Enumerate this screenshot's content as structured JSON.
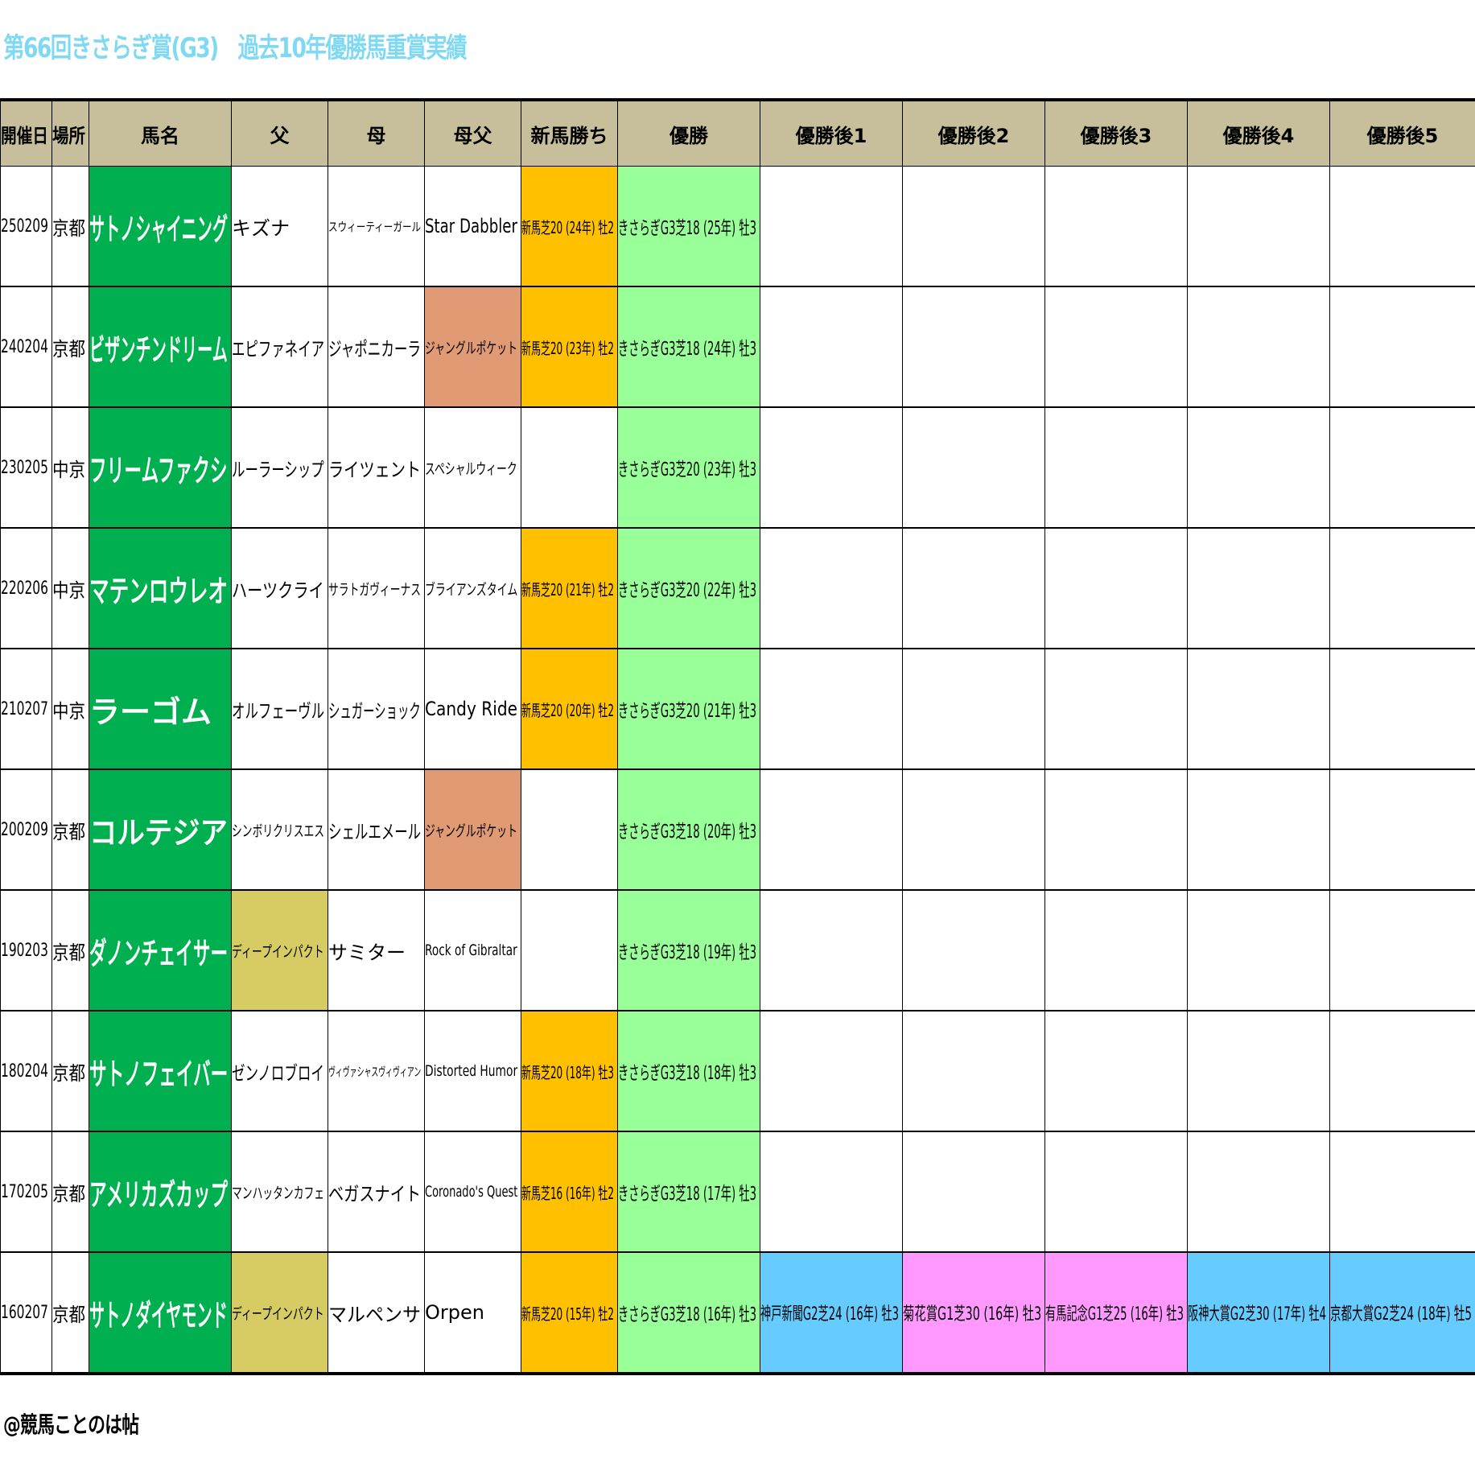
{
  "title": "第66回きさらぎ賞(G3)　過去10年優勝馬重賞実績",
  "footer": "@競馬ことのは帖",
  "columns": [
    "開催日",
    "場所",
    "馬名",
    "父",
    "母",
    "母父",
    "新馬勝ち",
    "優勝",
    "優勝後1",
    "優勝後2",
    "優勝後3",
    "優勝後4",
    "優勝後5"
  ],
  "colors": {
    "header": "#c7bf9b",
    "horse": "#00b050",
    "win": "#99ff99",
    "debut": "#ffc000",
    "damsire_highlight": "#e09a74",
    "sire_highlight": "#d7cc64",
    "g2": "#66ccff",
    "g1": "#ff99ff",
    "title": "#7fd9f3"
  },
  "rows": [
    {
      "date": "250209",
      "place": "京都",
      "horse": "サトノシャイニング",
      "sire": "キズナ",
      "dam": "スウィーティーガール",
      "damsire": "Star Dabbler",
      "debut": "新馬芝20 (24年) 牡2",
      "win": "きさらぎG3芝18 (25年) 牡3",
      "after": [
        "",
        "",
        "",
        "",
        ""
      ]
    },
    {
      "date": "240204",
      "place": "京都",
      "horse": "ビザンチンドリーム",
      "sire": "エピファネイア",
      "dam": "ジャポニカーラ",
      "damsire": "ジャングルポケット",
      "debut": "新馬芝20 (23年) 牡2",
      "win": "きさらぎG3芝18 (24年) 牡3",
      "after": [
        "",
        "",
        "",
        "",
        ""
      ]
    },
    {
      "date": "230205",
      "place": "中京",
      "horse": "フリームファクシ",
      "sire": "ルーラーシップ",
      "dam": "ライツェント",
      "damsire": "スペシャルウィーク",
      "debut": "",
      "win": "きさらぎG3芝20 (23年) 牡3",
      "after": [
        "",
        "",
        "",
        "",
        ""
      ]
    },
    {
      "date": "220206",
      "place": "中京",
      "horse": "マテンロウレオ",
      "sire": "ハーツクライ",
      "dam": "サラトガヴィーナス",
      "damsire": "ブライアンズタイム",
      "debut": "新馬芝20 (21年) 牡2",
      "win": "きさらぎG3芝20 (22年) 牡3",
      "after": [
        "",
        "",
        "",
        "",
        ""
      ]
    },
    {
      "date": "210207",
      "place": "中京",
      "horse": "ラーゴム",
      "sire": "オルフェーヴル",
      "dam": "シュガーショック",
      "damsire": "Candy Ride",
      "debut": "新馬芝20 (20年) 牡2",
      "win": "きさらぎG3芝20 (21年) 牡3",
      "after": [
        "",
        "",
        "",
        "",
        ""
      ]
    },
    {
      "date": "200209",
      "place": "京都",
      "horse": "コルテジア",
      "sire": "シンボリクリスエス",
      "dam": "シェルエメール",
      "damsire": "ジャングルポケット",
      "debut": "",
      "win": "きさらぎG3芝18 (20年) 牡3",
      "after": [
        "",
        "",
        "",
        "",
        ""
      ]
    },
    {
      "date": "190203",
      "place": "京都",
      "horse": "ダノンチェイサー",
      "sire": "ディープインパクト",
      "dam": "サミター",
      "damsire": "Rock of Gibraltar",
      "debut": "",
      "win": "きさらぎG3芝18 (19年) 牡3",
      "after": [
        "",
        "",
        "",
        "",
        ""
      ]
    },
    {
      "date": "180204",
      "place": "京都",
      "horse": "サトノフェイバー",
      "sire": "ゼンノロブロイ",
      "dam": "ヴィヴァシャスヴィヴィアン",
      "damsire": "Distorted Humor",
      "debut": "新馬芝20 (18年) 牡3",
      "win": "きさらぎG3芝18 (18年) 牡3",
      "after": [
        "",
        "",
        "",
        "",
        ""
      ]
    },
    {
      "date": "170205",
      "place": "京都",
      "horse": "アメリカズカップ",
      "sire": "マンハッタンカフェ",
      "dam": "ベガスナイト",
      "damsire": "Coronado's Quest",
      "debut": "新馬芝16 (16年) 牡2",
      "win": "きさらぎG3芝18 (17年) 牡3",
      "after": [
        "",
        "",
        "",
        "",
        ""
      ]
    },
    {
      "date": "160207",
      "place": "京都",
      "horse": "サトノダイヤモンド",
      "sire": "ディープインパクト",
      "dam": "マルペンサ",
      "damsire": "Orpen",
      "debut": "新馬芝20 (15年) 牡2",
      "win": "きさらぎG3芝18 (16年) 牡3",
      "after": [
        "神戸新聞G2芝24 (16年) 牡3",
        "菊花賞G1芝30 (16年) 牡3",
        "有馬記念G1芝25 (16年) 牡3",
        "阪神大賞G2芝30 (17年) 牡4",
        "京都大賞G2芝24 (18年) 牡5"
      ]
    }
  ]
}
